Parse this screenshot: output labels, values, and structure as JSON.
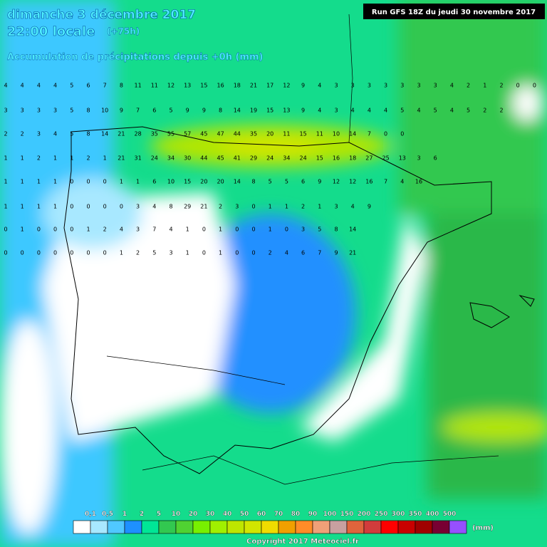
{
  "header": {
    "date": "dimanche 3 décembre 2017",
    "time": "22:00 locale",
    "lead": "(+75h)",
    "subtitle": "Accumulation de précipitations depuis +0h (mm)",
    "run": "Run GFS 18Z du jeudi 30 novembre 2017"
  },
  "grid": {
    "rows": [
      {
        "values": [
          4,
          4,
          4,
          4,
          5,
          6,
          7,
          8,
          11,
          11,
          12,
          13,
          15,
          16,
          18,
          21,
          17,
          12,
          9,
          4,
          3,
          3,
          3,
          3,
          3,
          3,
          3,
          4,
          2,
          1,
          2,
          0,
          0
        ]
      },
      {
        "values": [
          3,
          3,
          3,
          3,
          5,
          8,
          10,
          9,
          7,
          6,
          5,
          9,
          9,
          8,
          14,
          19,
          15,
          13,
          9,
          4,
          3,
          4,
          4,
          4,
          5,
          4,
          5,
          4,
          5,
          2,
          2
        ]
      },
      {
        "values": [
          2,
          2,
          3,
          4,
          5,
          8,
          14,
          21,
          28,
          35,
          55,
          57,
          45,
          47,
          44,
          35,
          20,
          11,
          15,
          11,
          10,
          14,
          7,
          0,
          0
        ]
      },
      {
        "values": [
          1,
          1,
          2,
          1,
          1,
          2,
          1,
          21,
          31,
          24,
          34,
          30,
          44,
          45,
          41,
          29,
          24,
          34,
          24,
          15,
          16,
          18,
          27,
          25,
          13,
          3,
          6
        ]
      },
      {
        "values": [
          1,
          1,
          1,
          1,
          0,
          0,
          0,
          1,
          1,
          6,
          10,
          15,
          20,
          20,
          14,
          8,
          5,
          5,
          6,
          9,
          12,
          12,
          16,
          7,
          4,
          16
        ]
      },
      {
        "values": [
          1,
          1,
          1,
          1,
          0,
          0,
          0,
          0,
          3,
          4,
          8,
          29,
          21,
          2,
          3,
          0,
          1,
          1,
          2,
          1,
          3,
          4,
          9
        ]
      },
      {
        "values": [
          0,
          1,
          0,
          0,
          0,
          1,
          2,
          4,
          3,
          7,
          4,
          1,
          0,
          1,
          0,
          0,
          1,
          0,
          3,
          5,
          8,
          14
        ]
      },
      {
        "values": [
          0,
          0,
          0,
          0,
          0,
          0,
          0,
          1,
          2,
          5,
          3,
          1,
          0,
          1,
          0,
          0,
          2,
          4,
          6,
          7,
          9,
          21
        ]
      }
    ]
  },
  "legend": {
    "labels": [
      "0,1",
      "0,5",
      "1",
      "2",
      "5",
      "10",
      "20",
      "30",
      "40",
      "50",
      "60",
      "70",
      "80",
      "90",
      "100",
      "150",
      "200",
      "250",
      "300",
      "350",
      "400",
      "500"
    ],
    "colors": [
      "#ffffff",
      "#a8e8ff",
      "#50c8ff",
      "#1e90ff",
      "#00e696",
      "#32c850",
      "#50d232",
      "#78f000",
      "#a0f000",
      "#bee600",
      "#d2e600",
      "#f0dc00",
      "#f0a000",
      "#ff8c28",
      "#f0a078",
      "#c8a0a0",
      "#e0643c",
      "#d23c3c",
      "#ff0000",
      "#c80000",
      "#a00000",
      "#780032",
      "#9650ff"
    ],
    "unit": "(mm)"
  },
  "footer": {
    "copyright": "Copyright 2017 Meteociel.fr"
  }
}
